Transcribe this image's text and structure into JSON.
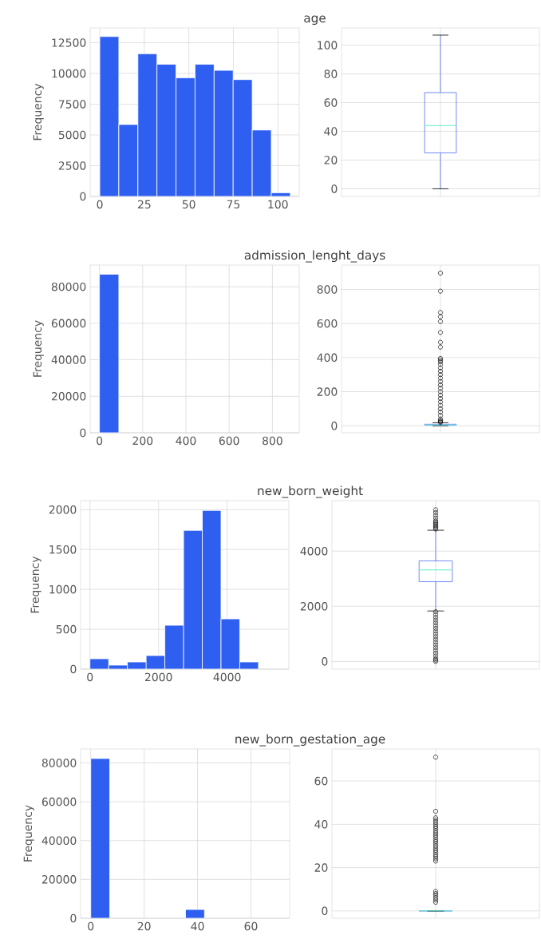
{
  "chart_data": [
    {
      "type": "histogram",
      "title": "age",
      "ylabel": "Frequency",
      "color": "#2f5ff0",
      "bins": [
        0,
        10.7,
        21.4,
        32.1,
        42.8,
        53.5,
        64.2,
        74.9,
        85.6,
        96.3,
        107
      ],
      "values": [
        13000,
        5850,
        11600,
        10750,
        9650,
        10750,
        10250,
        9500,
        5400,
        300
      ],
      "xlim": [
        -5.4,
        112
      ],
      "ylim": [
        0,
        13700
      ],
      "xticks": [
        0,
        25,
        50,
        75,
        100
      ],
      "yticks": [
        0,
        2500,
        5000,
        7500,
        10000,
        12500
      ],
      "grid": true
    },
    {
      "type": "box",
      "color": "#4f6ff5",
      "categories": [
        null
      ],
      "tick_labels": "y",
      "boxes": [
        {
          "low": 0,
          "q1": 25,
          "median": 44,
          "q3": 67,
          "high": 107
        }
      ],
      "ylim": [
        -5.3,
        112
      ],
      "yticks": [
        0,
        20,
        40,
        60,
        80,
        100
      ],
      "grid": true
    },
    {
      "type": "histogram",
      "title": "admission_lenght_days",
      "ylabel": "Frequency",
      "color": "#2f5ff0",
      "bins": [
        0,
        89.6,
        179.2,
        268.8,
        358.4,
        448,
        537.6,
        627.2,
        716.8,
        806.4,
        896
      ],
      "values": [
        86900,
        0,
        0,
        0,
        0,
        0,
        0,
        0,
        0,
        0
      ],
      "xlim": [
        -43,
        924
      ],
      "ylim": [
        0,
        91900
      ],
      "xticks": [
        0,
        200,
        400,
        600,
        800
      ],
      "yticks": [
        0,
        20000,
        40000,
        60000,
        80000
      ],
      "grid": true
    },
    {
      "type": "box",
      "color": "#4f6ff5",
      "categories": [
        null
      ],
      "tick_labels": "y",
      "boxes": [
        {
          "low": 0,
          "q1": 3,
          "median": 5,
          "q3": 9,
          "high": 18,
          "outliers": [
            896,
            790,
            665,
            640,
            612,
            548,
            490,
            462,
            395,
            385,
            375,
            360,
            340,
            320,
            300,
            280,
            260,
            240,
            220,
            200,
            180,
            160,
            140,
            120,
            100,
            80,
            60,
            40,
            30,
            25,
            20
          ]
        }
      ],
      "ylim": [
        -41,
        943
      ],
      "yticks": [
        0,
        200,
        400,
        600,
        800
      ],
      "grid": true
    },
    {
      "type": "histogram",
      "title": "new_born_weight",
      "ylabel": "Frequency",
      "color": "#2f5ff0",
      "bins": [
        0,
        546,
        1092,
        1638,
        2184,
        2730,
        3276,
        3822,
        4368,
        4914,
        5460
      ],
      "values": [
        130,
        50,
        90,
        170,
        550,
        1740,
        1990,
        630,
        90,
        0
      ],
      "xlim": [
        -273,
        5800
      ],
      "ylim": [
        0,
        2113
      ],
      "xticks": [
        0,
        2000,
        4000
      ],
      "yticks": [
        0,
        500,
        1000,
        1500,
        2000
      ],
      "grid": true
    },
    {
      "type": "box",
      "color": "#4f6ff5",
      "categories": [
        null
      ],
      "tick_labels": "y",
      "boxes": [
        {
          "low": 1830,
          "q1": 2890,
          "median": 3319,
          "q3": 3647,
          "high": 4757,
          "outliers": [
            4800,
            4850,
            4900,
            4950,
            5000,
            5050,
            5100,
            5200,
            5300,
            5400,
            5500,
            0,
            50,
            100,
            200,
            300,
            400,
            500,
            600,
            700,
            800,
            900,
            1000,
            1100,
            1200,
            1300,
            1400,
            1500,
            1600,
            1700,
            1800
          ]
        }
      ],
      "ylim": [
        -278,
        5830
      ],
      "yticks": [
        0,
        2000,
        4000
      ],
      "grid": true
    },
    {
      "type": "histogram",
      "title": "new_born_gestation_age",
      "ylabel": "Frequency",
      "color": "#2f5ff0",
      "bins": [
        0,
        7.1,
        14.2,
        21.3,
        28.4,
        35.5,
        42.6,
        49.7,
        56.8,
        63.9,
        71
      ],
      "values": [
        82300,
        0,
        0,
        0,
        0,
        4500,
        0,
        0,
        0,
        0
      ],
      "xlim": [
        -3.8,
        74.5
      ],
      "ylim": [
        0,
        87200
      ],
      "xticks": [
        0,
        20,
        40,
        60
      ],
      "yticks": [
        0,
        20000,
        40000,
        60000,
        80000
      ],
      "grid": true
    },
    {
      "type": "box",
      "color": "#4f6ff5",
      "categories": [
        null
      ],
      "tick_labels": "y",
      "boxes": [
        {
          "low": 0,
          "q1": 0,
          "median": 0,
          "q3": 0,
          "high": 0,
          "outliers": [
            71,
            46,
            43,
            42,
            41,
            40,
            39,
            38,
            37,
            36,
            35,
            34,
            33,
            32,
            31,
            30,
            29,
            28,
            27,
            26,
            25,
            24,
            23,
            9,
            8,
            7,
            6,
            5,
            4
          ]
        }
      ],
      "ylim": [
        -3.4,
        74.8
      ],
      "yticks": [
        0,
        20,
        40,
        60
      ],
      "grid": true
    }
  ]
}
